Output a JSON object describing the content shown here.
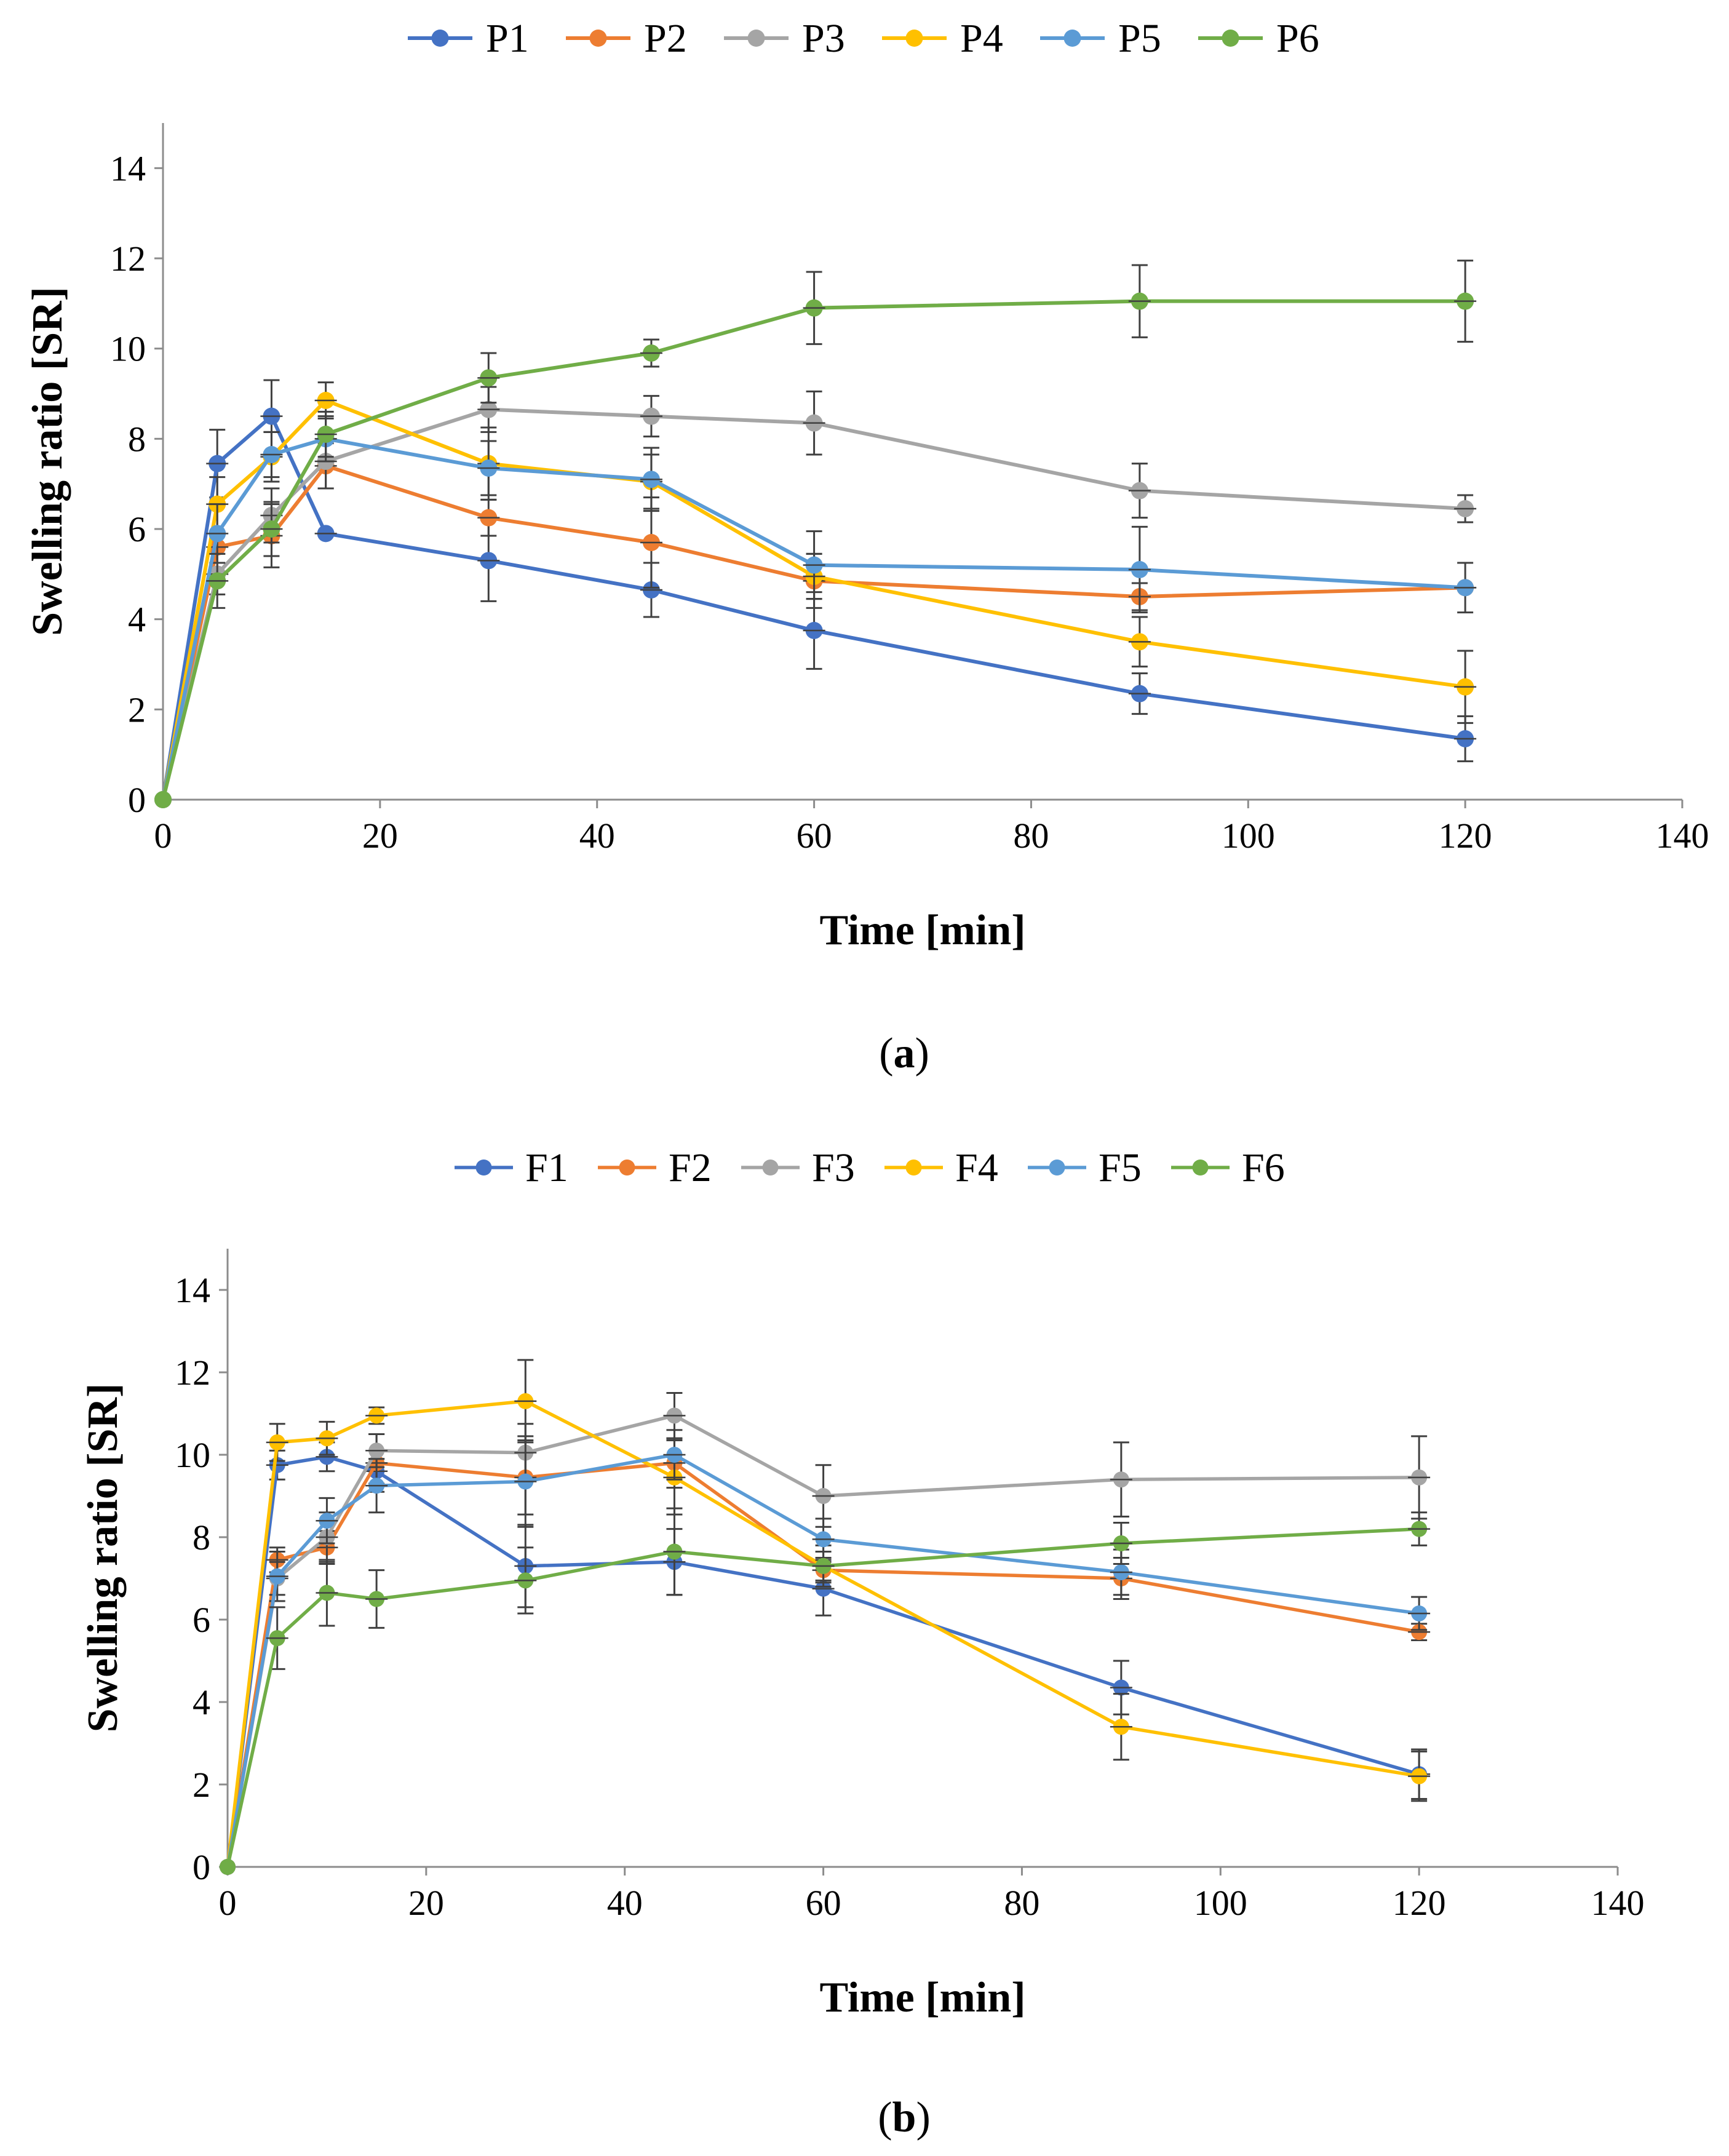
{
  "chart_data": [
    {
      "id": "a",
      "type": "line",
      "caption": "a",
      "xlabel": "Time  [min]",
      "ylabel": "Swelling  ratio [SR]",
      "xlim": [
        0,
        140
      ],
      "ylim": [
        0,
        15
      ],
      "xticks": [
        0,
        20,
        40,
        60,
        80,
        100,
        120,
        140
      ],
      "yticks": [
        0,
        2,
        4,
        6,
        8,
        10,
        12,
        14
      ],
      "legend_position": "top-center",
      "x": [
        0,
        5,
        10,
        15,
        30,
        45,
        60,
        90,
        120
      ],
      "series": [
        {
          "name": "P1",
          "color": "#4472c4",
          "values": [
            0,
            7.45,
            8.5,
            5.9,
            5.3,
            4.65,
            3.75,
            2.35,
            1.35
          ],
          "errors": [
            0,
            0.75,
            0.8,
            0,
            0.9,
            0.6,
            0.85,
            0.45,
            0.5
          ]
        },
        {
          "name": "P2",
          "color": "#ed7d31",
          "values": [
            0,
            5.6,
            5.85,
            7.4,
            6.25,
            5.7,
            4.85,
            4.5,
            4.7
          ],
          "errors": [
            0,
            0,
            0.7,
            0.5,
            0.4,
            1.0,
            0.6,
            0.3,
            0
          ]
        },
        {
          "name": "P3",
          "color": "#a5a5a5",
          "values": [
            0,
            5.0,
            6.3,
            7.5,
            8.65,
            8.5,
            8.35,
            6.85,
            6.45
          ],
          "errors": [
            0,
            0.45,
            0.6,
            0.6,
            0.5,
            0.45,
            0.7,
            0.6,
            0.3
          ]
        },
        {
          "name": "P4",
          "color": "#ffc000",
          "values": [
            0,
            6.55,
            7.6,
            8.85,
            7.45,
            7.05,
            4.95,
            3.5,
            2.5
          ],
          "errors": [
            0,
            0.6,
            0.55,
            0.4,
            0.8,
            0.6,
            0.5,
            0.55,
            0.8
          ]
        },
        {
          "name": "P5",
          "color": "#5b9bd5",
          "values": [
            0,
            5.9,
            7.65,
            8.0,
            7.35,
            7.1,
            5.2,
            5.1,
            4.7
          ],
          "errors": [
            0,
            0.65,
            0.5,
            0.5,
            0.6,
            0.7,
            0.75,
            0.95,
            0.55
          ]
        },
        {
          "name": "P6",
          "color": "#70ad47",
          "values": [
            0,
            4.85,
            6.0,
            8.1,
            9.35,
            9.9,
            10.9,
            11.05,
            11.05
          ],
          "errors": [
            0,
            0.6,
            0.6,
            0.5,
            0.55,
            0.3,
            0.8,
            0.8,
            0.9
          ]
        }
      ]
    },
    {
      "id": "b",
      "type": "line",
      "caption": "b",
      "xlabel": "Time  [min]",
      "ylabel": "Swelling  ratio [SR]",
      "xlim": [
        0,
        140
      ],
      "ylim": [
        0,
        15
      ],
      "xticks": [
        0,
        20,
        40,
        60,
        80,
        100,
        120,
        140
      ],
      "yticks": [
        0,
        2,
        4,
        6,
        8,
        10,
        12,
        14
      ],
      "legend_position": "top-center",
      "x": [
        0,
        5,
        10,
        15,
        30,
        45,
        60,
        90,
        120
      ],
      "series": [
        {
          "name": "F1",
          "color": "#4472c4",
          "values": [
            0,
            9.75,
            9.95,
            9.6,
            7.3,
            7.4,
            6.75,
            4.35,
            2.25
          ],
          "errors": [
            0,
            0.35,
            0.35,
            0.3,
            1.0,
            0.8,
            0.65,
            0.65,
            0.6
          ]
        },
        {
          "name": "F2",
          "color": "#ed7d31",
          "values": [
            0,
            7.45,
            7.75,
            9.8,
            9.45,
            9.8,
            7.2,
            7.0,
            5.7
          ],
          "errors": [
            0,
            0.3,
            0.4,
            0.7,
            0.9,
            0.6,
            0.3,
            0.5,
            0.2
          ]
        },
        {
          "name": "F3",
          "color": "#a5a5a5",
          "values": [
            0,
            7.0,
            8.0,
            10.1,
            10.05,
            10.95,
            9.0,
            9.4,
            9.45
          ],
          "errors": [
            0,
            0.4,
            0.6,
            0.4,
            0.7,
            0.55,
            0.75,
            0.9,
            1.0
          ]
        },
        {
          "name": "F4",
          "color": "#ffc000",
          "values": [
            0,
            10.3,
            10.4,
            10.95,
            11.3,
            9.45,
            7.3,
            3.4,
            2.2
          ],
          "errors": [
            0,
            0.45,
            0.4,
            0.2,
            1.0,
            0.9,
            0.5,
            0.8,
            0.6
          ]
        },
        {
          "name": "F5",
          "color": "#5b9bd5",
          "values": [
            0,
            7.05,
            8.4,
            9.25,
            9.35,
            10.0,
            7.95,
            7.15,
            6.15
          ],
          "errors": [
            0,
            0.6,
            0.55,
            0.65,
            1.1,
            0.6,
            0.5,
            0.55,
            0.4
          ]
        },
        {
          "name": "F6",
          "color": "#70ad47",
          "values": [
            0,
            5.55,
            6.65,
            6.5,
            6.95,
            7.65,
            7.3,
            7.85,
            8.2
          ],
          "errors": [
            0,
            0.75,
            0.8,
            0.7,
            0.8,
            1.05,
            0.35,
            0.5,
            0.4
          ]
        }
      ]
    }
  ]
}
